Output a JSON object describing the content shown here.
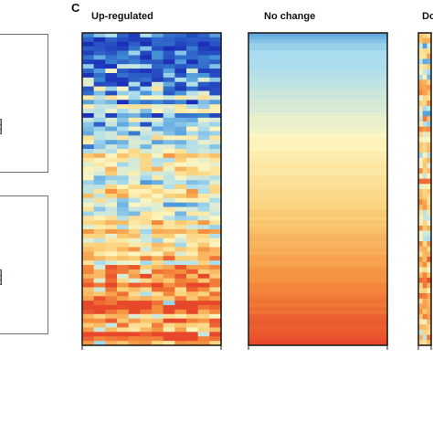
{
  "panel_label": "C",
  "colors": {
    "scale": [
      "#1b2fb8",
      "#3f8fd6",
      "#a8dcee",
      "#fdf6c0",
      "#fbd079",
      "#f5913e",
      "#e8482a"
    ],
    "frame": "#222222",
    "left_panel_border": "#6e6e6e",
    "handle_fill": "#9aa8a8"
  },
  "chart_data": [
    {
      "type": "heatmap",
      "title": "Up-regulated",
      "color_scale": "diverging blue-yellow-red",
      "rows": 70,
      "cols": 12,
      "pattern": "blue-dominant rows at top, mostly orange/red rows at bottom, heterogeneous",
      "x_ticks_visible": true
    },
    {
      "type": "heatmap",
      "title": "No change",
      "color_scale": "diverging blue-yellow-red",
      "rows": 90,
      "cols": 1,
      "pattern": "smooth gradient: light blue at top, pale yellow in the middle, orange to red at the bottom",
      "x_ticks_visible": true
    },
    {
      "type": "heatmap",
      "title": "Do",
      "color_scale": "diverging blue-yellow-red",
      "rows": 60,
      "cols": 3,
      "pattern": "heterogeneous yellow/orange/red rows, partially visible (cropped at right edge)",
      "x_ticks_visible": true
    }
  ]
}
